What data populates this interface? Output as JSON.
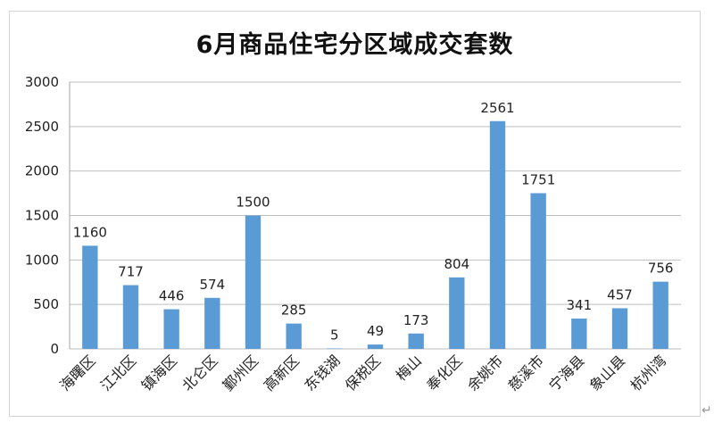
{
  "chart_data": {
    "type": "bar",
    "title": "6月商品住宅分区域成交套数",
    "categories": [
      "海曙区",
      "江北区",
      "镇海区",
      "北仑区",
      "鄞州区",
      "高新区",
      "东钱湖",
      "保税区",
      "梅山",
      "奉化区",
      "余姚市",
      "慈溪市",
      "宁海县",
      "象山县",
      "杭州湾"
    ],
    "values": [
      1160,
      717,
      446,
      574,
      1500,
      285,
      5,
      49,
      173,
      804,
      2561,
      1751,
      341,
      457,
      756
    ],
    "ylim": [
      0,
      3000
    ],
    "yticks": [
      0,
      500,
      1000,
      1500,
      2000,
      2500,
      3000
    ],
    "grid": true,
    "bar_color": "#5b9bd5",
    "data_labels": true
  },
  "return_mark": "↵"
}
